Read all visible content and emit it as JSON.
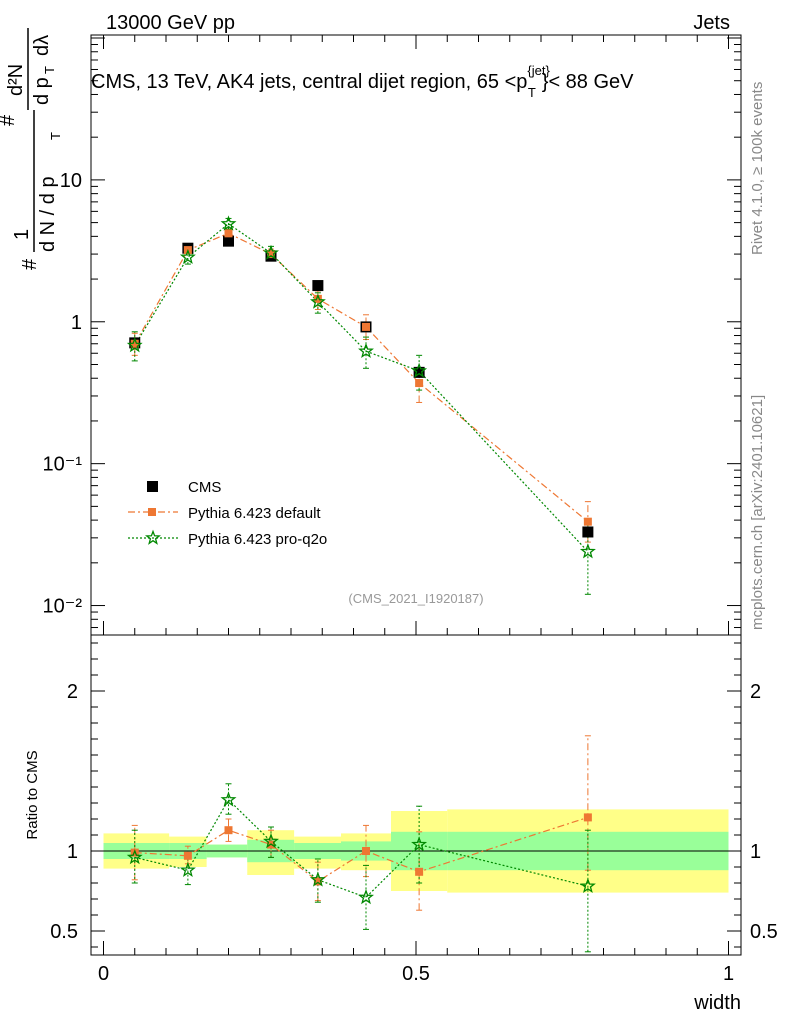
{
  "header": {
    "left": "13000 GeV pp",
    "right": "Jets",
    "title": "CMS, 13 TeV, AK4 jets, central dijet region, 65 <p",
    "title_sup": "{jet}",
    "title_sub": "T",
    "title_end": "}< 88 GeV"
  },
  "side_labels": {
    "rivet": "Rivet 4.1.0, ≥ 100k events",
    "mcplots": "mcplots.cern.ch [arXiv:2401.10621]"
  },
  "watermark": "(CMS_2021_I1920187)",
  "ylabel_main": {
    "hash1": "#",
    "one": "1",
    "dN": "d N / d p",
    "T1": "T",
    "hash2": "#",
    "d2N": "d²N",
    "dpT": "d p",
    "T2": "T",
    "dl": "dλ"
  },
  "ylabel_ratio": "Ratio to CMS",
  "xlabel": "width",
  "chart_data": {
    "type": "scatter",
    "x_edges": [
      0,
      0.105,
      0.165,
      0.23,
      0.305,
      0.38,
      0.46,
      0.55,
      1.0
    ],
    "xlim": [
      -0.02,
      1.02
    ],
    "x_ticks": [
      0,
      0.5,
      1
    ],
    "x_ticklabels": [
      "0",
      "0.5",
      "1"
    ],
    "main": {
      "yscale": "log",
      "ylim": [
        0.0062,
        105
      ],
      "y_ticks": [
        0.01,
        0.1,
        1,
        10
      ],
      "y_ticklabels": [
        "10⁻²",
        "10⁻¹",
        "1",
        "10"
      ]
    },
    "ratio": {
      "ylim": [
        0.35,
        2.35
      ],
      "y_ticks": [
        0.5,
        1,
        2
      ],
      "y_ticklabels": [
        "0.5",
        "1",
        "2"
      ],
      "band_inner": [
        {
          "x0": 0.0,
          "x1": 0.105,
          "lo": 0.95,
          "hi": 1.05
        },
        {
          "x0": 0.105,
          "x1": 0.165,
          "lo": 0.95,
          "hi": 1.05
        },
        {
          "x0": 0.165,
          "x1": 0.23,
          "lo": 0.96,
          "hi": 1.04
        },
        {
          "x0": 0.23,
          "x1": 0.305,
          "lo": 0.93,
          "hi": 1.07
        },
        {
          "x0": 0.305,
          "x1": 0.38,
          "lo": 0.95,
          "hi": 1.05
        },
        {
          "x0": 0.38,
          "x1": 0.46,
          "lo": 0.94,
          "hi": 1.06
        },
        {
          "x0": 0.46,
          "x1": 0.55,
          "lo": 0.88,
          "hi": 1.12
        },
        {
          "x0": 0.55,
          "x1": 1.0,
          "lo": 0.88,
          "hi": 1.12
        }
      ],
      "band_outer": [
        {
          "x0": 0.0,
          "x1": 0.105,
          "lo": 0.89,
          "hi": 1.11
        },
        {
          "x0": 0.105,
          "x1": 0.165,
          "lo": 0.9,
          "hi": 1.09
        },
        {
          "x0": 0.165,
          "x1": 0.23,
          "lo": 0.96,
          "hi": 1.04
        },
        {
          "x0": 0.23,
          "x1": 0.305,
          "lo": 0.85,
          "hi": 1.13
        },
        {
          "x0": 0.305,
          "x1": 0.38,
          "lo": 0.89,
          "hi": 1.09
        },
        {
          "x0": 0.38,
          "x1": 0.46,
          "lo": 0.88,
          "hi": 1.11
        },
        {
          "x0": 0.46,
          "x1": 0.55,
          "lo": 0.75,
          "hi": 1.25
        },
        {
          "x0": 0.55,
          "x1": 1.0,
          "lo": 0.74,
          "hi": 1.26
        }
      ]
    },
    "series": [
      {
        "name": "CMS",
        "style": "data",
        "color": "#000000",
        "x": [
          0.05,
          0.135,
          0.2,
          0.268,
          0.343,
          0.42,
          0.505,
          0.775
        ],
        "y": [
          0.71,
          3.3,
          3.7,
          2.9,
          1.8,
          0.92,
          0.44,
          0.033
        ]
      },
      {
        "name": "Pythia 6.423 default",
        "style": "dashdot",
        "color": "#ee7733",
        "x": [
          0.05,
          0.135,
          0.2,
          0.268,
          0.343,
          0.42,
          0.505,
          0.775
        ],
        "y": [
          0.7,
          3.2,
          4.2,
          3.0,
          1.45,
          0.92,
          0.37,
          0.039
        ],
        "err_lo": [
          0.58,
          3.05,
          3.95,
          2.8,
          1.22,
          0.75,
          0.27,
          0.028
        ],
        "err_hi": [
          0.83,
          3.45,
          4.5,
          3.25,
          1.65,
          1.12,
          0.47,
          0.054
        ],
        "ratio": [
          0.99,
          0.97,
          1.13,
          1.04,
          0.81,
          1.0,
          0.87,
          1.21
        ],
        "ratio_lo": [
          0.82,
          0.92,
          1.06,
          0.96,
          0.69,
          0.84,
          0.63,
          0.88
        ],
        "ratio_hi": [
          1.16,
          1.03,
          1.2,
          1.13,
          0.93,
          1.16,
          1.12,
          1.72
        ]
      },
      {
        "name": "Pythia 6.423 pro-q2o",
        "style": "dotted",
        "color": "#008800",
        "x": [
          0.05,
          0.135,
          0.2,
          0.268,
          0.343,
          0.42,
          0.505,
          0.775
        ],
        "y": [
          0.68,
          2.85,
          4.9,
          3.05,
          1.38,
          0.62,
          0.45,
          0.024
        ],
        "err_lo": [
          0.53,
          2.55,
          4.5,
          2.75,
          1.15,
          0.47,
          0.33,
          0.012
        ],
        "err_hi": [
          0.85,
          3.2,
          5.35,
          3.4,
          1.6,
          0.78,
          0.58,
          0.038
        ],
        "ratio": [
          0.96,
          0.88,
          1.32,
          1.06,
          0.82,
          0.71,
          1.04,
          0.78
        ],
        "ratio_lo": [
          0.8,
          0.79,
          1.23,
          0.96,
          0.68,
          0.51,
          0.8,
          0.37
        ],
        "ratio_hi": [
          1.13,
          0.98,
          1.42,
          1.15,
          0.95,
          0.91,
          1.28,
          1.13
        ]
      }
    ]
  }
}
